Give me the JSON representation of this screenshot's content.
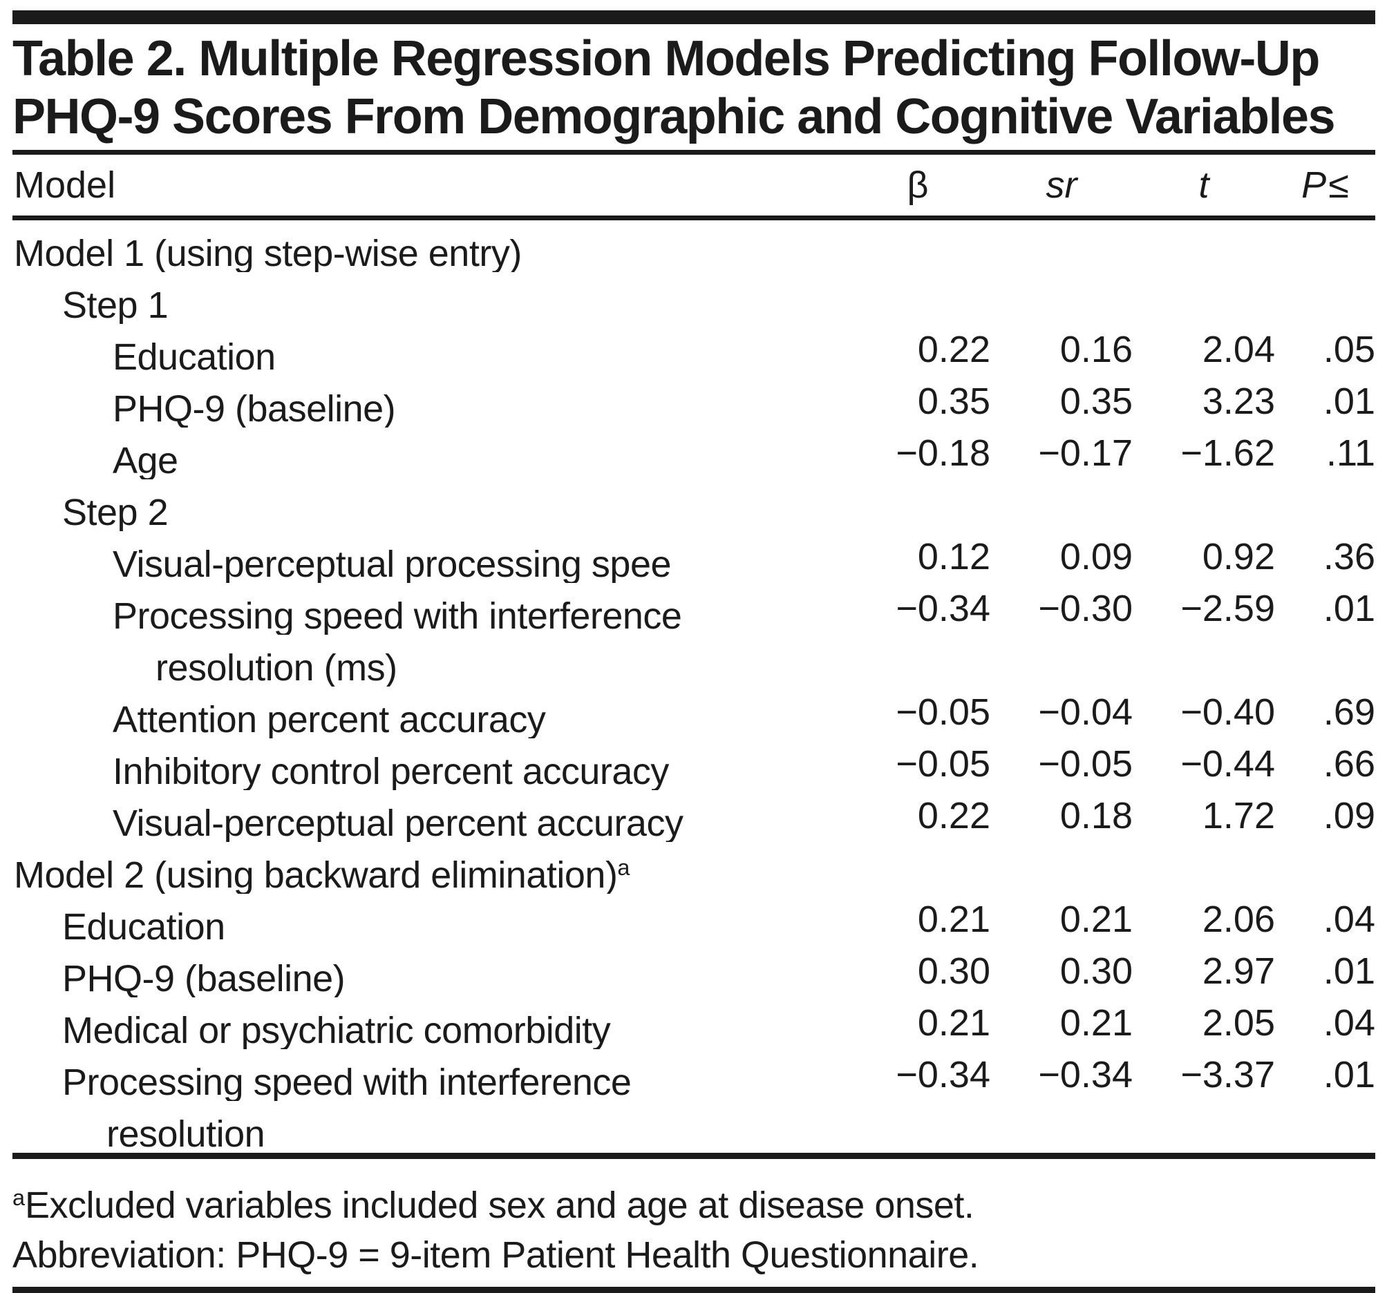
{
  "title": {
    "line1": "Table 2. Multiple Regression Models Predicting Follow-Up",
    "line2": "PHQ-9 Scores From Demographic and Cognitive Variables"
  },
  "table": {
    "header": {
      "model": "Model",
      "beta": "β",
      "sr": "sr",
      "t": "t",
      "p": "P",
      "leq": "≤"
    },
    "rows": [
      {
        "label": "Model 1 (using step-wise entry)",
        "indent": "0",
        "values": [
          "",
          "",
          "",
          ""
        ]
      },
      {
        "label": "Step 1",
        "indent": "1",
        "values": [
          "",
          "",
          "",
          ""
        ]
      },
      {
        "label": "Education",
        "indent": "2",
        "values": [
          "0.22",
          "0.16",
          "2.04",
          ".05"
        ]
      },
      {
        "label": "PHQ-9 (baseline)",
        "indent": "2",
        "values": [
          "0.35",
          "0.35",
          "3.23",
          ".01"
        ]
      },
      {
        "label": "Age",
        "indent": "2",
        "values": [
          "−0.18",
          "−0.17",
          "−1.62",
          ".11"
        ]
      },
      {
        "label": "Step 2",
        "indent": "1",
        "values": [
          "",
          "",
          "",
          ""
        ]
      },
      {
        "label": "Visual-perceptual processing spee",
        "indent": "2",
        "values": [
          "0.12",
          "0.09",
          "0.92",
          ".36"
        ]
      },
      {
        "label": "Processing speed with interference",
        "indent": "2",
        "values": [
          "−0.34",
          "−0.30",
          "−2.59",
          ".01"
        ]
      },
      {
        "label": "resolution (ms)",
        "indent": "w2",
        "values": [
          "",
          "",
          "",
          ""
        ]
      },
      {
        "label": "Attention percent accuracy",
        "indent": "2",
        "values": [
          "−0.05",
          "−0.04",
          "−0.40",
          ".69"
        ]
      },
      {
        "label": "Inhibitory control percent accuracy",
        "indent": "2",
        "values": [
          "−0.05",
          "−0.05",
          "−0.44",
          ".66"
        ]
      },
      {
        "label": "Visual-perceptual percent accuracy",
        "indent": "2",
        "values": [
          "0.22",
          "0.18",
          "1.72",
          ".09"
        ]
      },
      {
        "label": "Model 2 (using backward elimination)",
        "sup": "a",
        "indent": "0",
        "values": [
          "",
          "",
          "",
          ""
        ]
      },
      {
        "label": "Education",
        "indent": "1",
        "values": [
          "0.21",
          "0.21",
          "2.06",
          ".04"
        ]
      },
      {
        "label": "PHQ-9 (baseline)",
        "indent": "1",
        "values": [
          "0.30",
          "0.30",
          "2.97",
          ".01"
        ]
      },
      {
        "label": "Medical or psychiatric comorbidity",
        "indent": "1",
        "values": [
          "0.21",
          "0.21",
          "2.05",
          ".04"
        ]
      },
      {
        "label": "Processing speed with interference",
        "indent": "1",
        "values": [
          "−0.34",
          "−0.34",
          "−3.37",
          ".01"
        ]
      },
      {
        "label": "resolution",
        "indent": "w1",
        "values": [
          "",
          "",
          "",
          ""
        ]
      }
    ]
  },
  "footnotes": {
    "a_marker": "a",
    "a_text": "Excluded variables included sex and age at disease onset.",
    "abbreviation": "Abbreviation: PHQ-9 = 9-item Patient Health Questionnaire."
  },
  "colors": {
    "text": "#1b1b1b",
    "rule": "#1b1b1b",
    "background": "#ffffff"
  }
}
